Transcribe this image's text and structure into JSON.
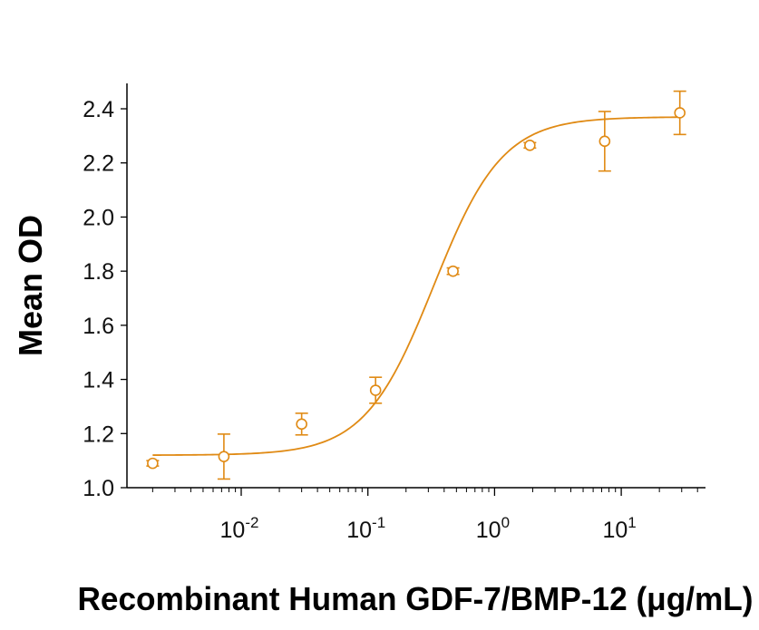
{
  "chart_data": {
    "type": "scatter",
    "title": "",
    "xlabel": "Recombinant Human GDF-7/BMP-12 (μg/mL)",
    "ylabel": "Mean OD",
    "x_scale": "log",
    "xlim": [
      0.0013,
      40
    ],
    "ylim": [
      1.0,
      2.5
    ],
    "x_ticks": [
      {
        "value": 0.01,
        "base": "10",
        "exp": "-2"
      },
      {
        "value": 0.1,
        "base": "10",
        "exp": "-1"
      },
      {
        "value": 1,
        "base": "10",
        "exp": "0"
      },
      {
        "value": 10,
        "base": "10",
        "exp": "1"
      }
    ],
    "y_ticks": [
      "1.0",
      "1.2",
      "1.4",
      "1.6",
      "1.8",
      "2.0",
      "2.2",
      "2.4"
    ],
    "grid": false,
    "legend": "none",
    "color": "#E08A14",
    "points": [
      {
        "x": 0.002,
        "y": 1.09,
        "err": 0.01
      },
      {
        "x": 0.0073,
        "y": 1.115,
        "err": 0.083
      },
      {
        "x": 0.03,
        "y": 1.235,
        "err": 0.04
      },
      {
        "x": 0.115,
        "y": 1.36,
        "err": 0.048
      },
      {
        "x": 0.47,
        "y": 1.8,
        "err": 0.012
      },
      {
        "x": 1.9,
        "y": 2.265,
        "err": 0.01
      },
      {
        "x": 7.4,
        "y": 2.28,
        "err": 0.11
      },
      {
        "x": 29,
        "y": 2.385,
        "err": 0.08
      }
    ],
    "fit_curve": {
      "model": "4PL",
      "bottom": 1.12,
      "top": 2.37,
      "ec50": 0.33,
      "hill": 1.6
    }
  }
}
